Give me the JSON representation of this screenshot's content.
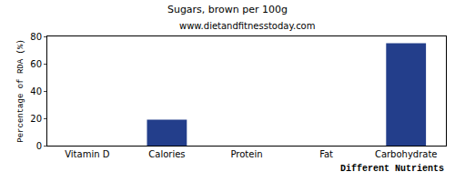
{
  "chart_data": {
    "type": "bar",
    "title": "Sugars, brown per 100g",
    "subtitle": "www.dietandfitnesstoday.com",
    "xlabel": "Different Nutrients",
    "ylabel": "Percentage of RDA (%)",
    "categories": [
      "Vitamin D",
      "Calories",
      "Protein",
      "Fat",
      "Carbohydrate"
    ],
    "values": [
      0,
      19,
      0,
      0,
      75
    ],
    "color": "#233e8b",
    "ylim": [
      0,
      80
    ],
    "yticks": [
      0,
      20,
      40,
      60,
      80
    ],
    "grid": false
  }
}
